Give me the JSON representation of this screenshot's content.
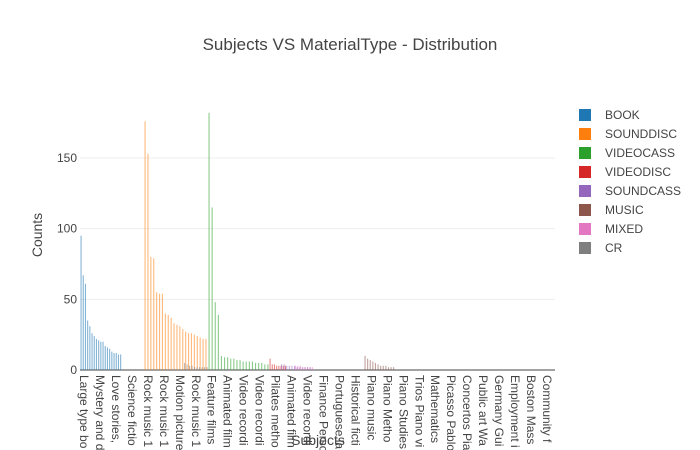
{
  "chart_data": {
    "type": "bar",
    "title": "Subjects VS MaterialType - Distribution",
    "xlabel": "Subjects",
    "ylabel": "Counts",
    "ylim": [
      0,
      196
    ],
    "yticks": [
      0,
      50,
      100,
      150
    ],
    "grid": true,
    "legend_position": "right",
    "x_tick_labels": [
      "Large type bo",
      "Mystery and d",
      "Love stories,",
      "Science fictio",
      "Rock music 1",
      "Rock music 1",
      "Motion picture",
      "Rock music 1",
      "Feature films",
      "Animated film",
      "Video recordi",
      "Video recordi",
      "Pilates metho",
      "Animated film",
      "Video recordi",
      "Finance Perso",
      "Portuguese la",
      "Historical ficti",
      "Piano music",
      "Piano Metho",
      "Piano Studies",
      "Trios Piano vi",
      "Mathematics",
      "Picasso Pablo",
      "Concertos Pia",
      "Public art Wa",
      "Germany Gui",
      "Employment i",
      "Boston Mass",
      "Community f"
    ],
    "series": [
      {
        "name": "BOOK",
        "color": "#1f77b4",
        "values": [
          95,
          67,
          61,
          35,
          31,
          26,
          24,
          22,
          21,
          20,
          20,
          17,
          16,
          15,
          13,
          12,
          12,
          11,
          11
        ]
      },
      {
        "name": "SOUNDDISC",
        "color": "#ff7f0e",
        "values": [
          176,
          153,
          80,
          79,
          55,
          54,
          54,
          40,
          39,
          37,
          33,
          32,
          31,
          29,
          27,
          26,
          26,
          25,
          24,
          23,
          22,
          22
        ]
      },
      {
        "name": "VIDEOCASS",
        "color": "#2ca02c",
        "values": [
          182,
          115,
          48,
          39,
          10,
          9,
          9,
          8,
          8,
          7,
          7,
          6,
          6,
          6,
          6,
          5,
          5,
          5,
          4,
          4
        ]
      },
      {
        "name": "VIDEODISC",
        "color": "#d62728",
        "values": [
          8,
          4,
          4,
          3,
          3,
          3,
          3,
          3
        ]
      },
      {
        "name": "SOUNDCASS",
        "color": "#9467bd",
        "values": [
          4,
          4,
          3,
          3,
          3,
          3,
          2,
          2,
          2,
          2,
          2,
          2
        ]
      },
      {
        "name": "MUSIC",
        "color": "#8c564b",
        "values": [
          10,
          8,
          7,
          6,
          5,
          4,
          3,
          3,
          3,
          2,
          2,
          2
        ]
      },
      {
        "name": "MIXED",
        "color": "#e377c2",
        "values": [
          3,
          3,
          3,
          2,
          2,
          2,
          2,
          2
        ]
      },
      {
        "name": "CR",
        "color": "#7f7f7f",
        "values": [
          5,
          4,
          3,
          3,
          2,
          2,
          2,
          2,
          2,
          2
        ]
      }
    ]
  }
}
